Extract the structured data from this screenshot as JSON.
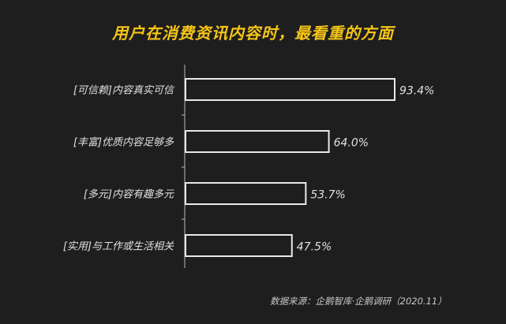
{
  "chart_data": {
    "type": "bar",
    "orientation": "horizontal",
    "title": "用户在消费资讯内容时，最看重的方面",
    "categories": [
      "[可信赖]内容真实可信",
      "[丰富]优质内容足够多",
      "[多元]内容有趣多元",
      "[实用]与工作或生活相关"
    ],
    "values": [
      93.4,
      64.0,
      53.7,
      47.5
    ],
    "value_labels": [
      "93.4%",
      "64.0%",
      "53.7%",
      "47.5%"
    ],
    "xlim": [
      0,
      100
    ],
    "grid": false,
    "bar_style": "outline",
    "colors": {
      "background": "#1e1e1e",
      "title": "#f5c518",
      "bar_stroke": "#e8e8e8",
      "text": "#e0e0e0"
    }
  },
  "source": "数据来源：企鹅智库·企鹅调研（2020.11）"
}
